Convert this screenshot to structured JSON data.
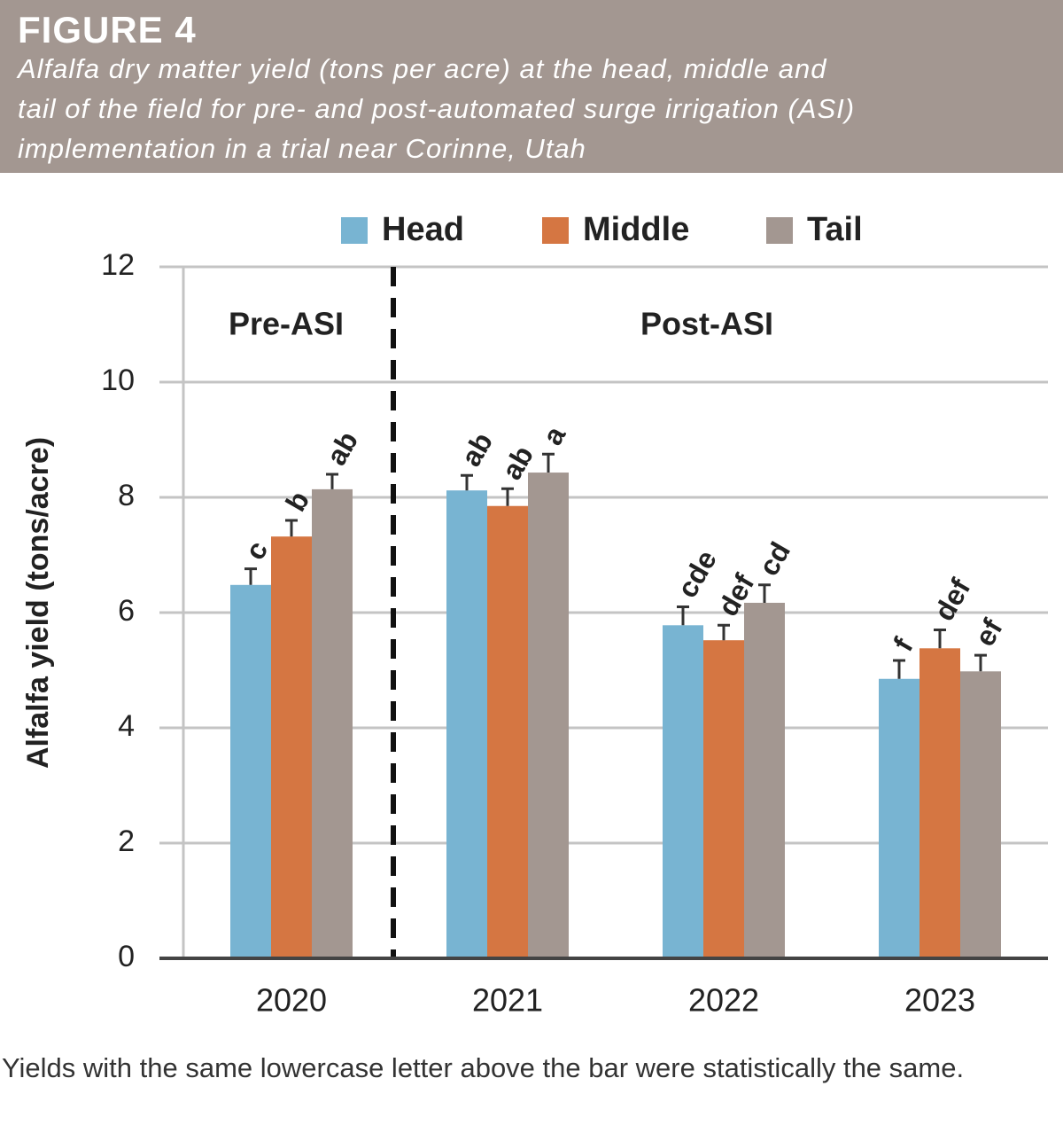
{
  "chart_data": {
    "type": "bar",
    "figure_label": "FIGURE 4",
    "subtitle": [
      "Alfalfa dry matter yield (tons per acre) at the head, middle and",
      "tail of the field for pre- and post-automated surge irrigation (ASI)",
      "implementation in a trial near Corinne, Utah"
    ],
    "y_label": "Alfalfa yield (tons/acre)",
    "categories": [
      "2020",
      "2021",
      "2022",
      "2023"
    ],
    "annotations": [
      "Pre-ASI",
      "Post-ASI"
    ],
    "series": [
      {
        "name": "Head",
        "color": "#78b4d2",
        "values": [
          6.48,
          8.12,
          5.78,
          4.85
        ],
        "errors": [
          0.28,
          0.26,
          0.32,
          0.32
        ],
        "letters": [
          "c",
          "ab",
          "cde",
          "f"
        ]
      },
      {
        "name": "Middle",
        "color": "#d57642",
        "values": [
          7.32,
          7.85,
          5.52,
          5.38
        ],
        "errors": [
          0.28,
          0.3,
          0.26,
          0.32
        ],
        "letters": [
          "b",
          "ab",
          "def",
          "def"
        ]
      },
      {
        "name": "Tail",
        "color": "#a39791",
        "values": [
          8.14,
          8.43,
          6.17,
          4.98
        ],
        "errors": [
          0.26,
          0.32,
          0.31,
          0.28
        ],
        "letters": [
          "ab",
          "a",
          "cd",
          "ef"
        ]
      }
    ],
    "ylim": [
      0,
      12
    ],
    "yticks": [
      0,
      2,
      4,
      6,
      8,
      10,
      12
    ],
    "grid": true,
    "footnote": "Yields with the same lowercase letter above the bar were statistically the same."
  }
}
